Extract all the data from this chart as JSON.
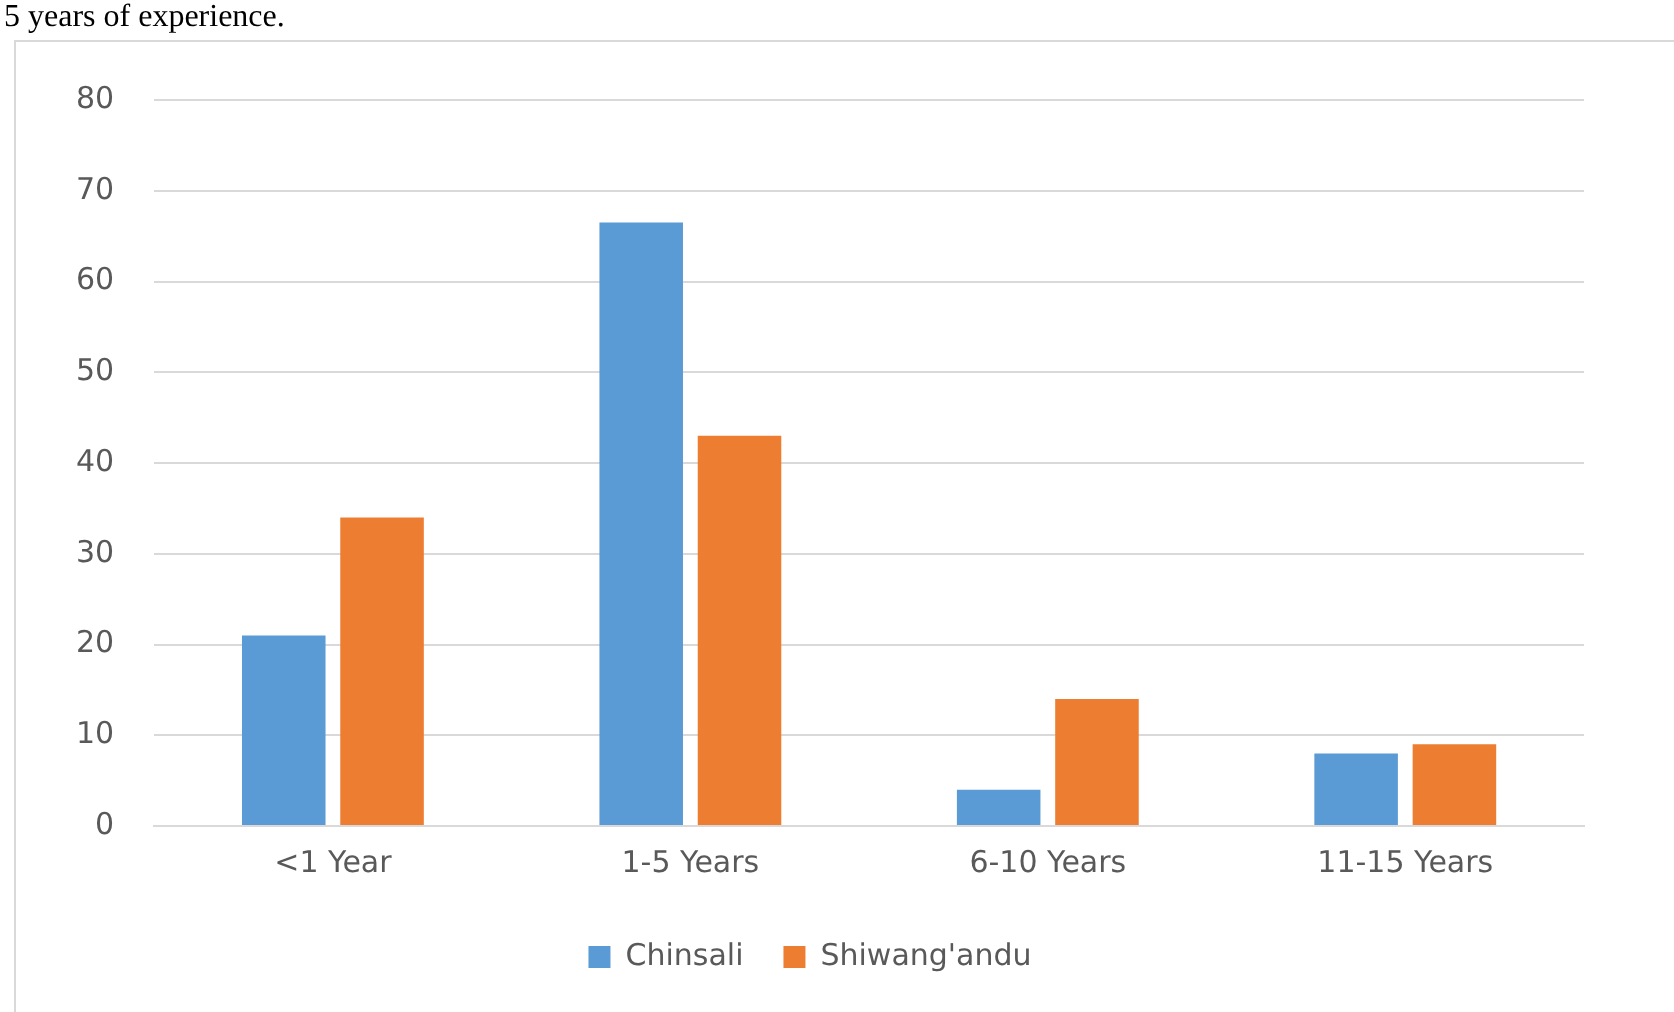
{
  "chart_data": {
    "type": "bar",
    "categories": [
      "<1 Year",
      "1-5 Years",
      "6-10 Years",
      "11-15 Years"
    ],
    "series": [
      {
        "name": "Chinsali",
        "color": "#5b9bd5",
        "values": [
          21,
          66.5,
          4,
          8
        ]
      },
      {
        "name": "Shiwang'andu",
        "color": "#ed7d31",
        "values": [
          34,
          43,
          14,
          9
        ]
      }
    ],
    "ylim": [
      0,
      80
    ],
    "yticks": [
      0,
      10,
      20,
      30,
      40,
      50,
      60,
      70,
      80
    ],
    "grid": "y",
    "legend": "bottom",
    "annotations": [
      "5 years of experience."
    ]
  }
}
